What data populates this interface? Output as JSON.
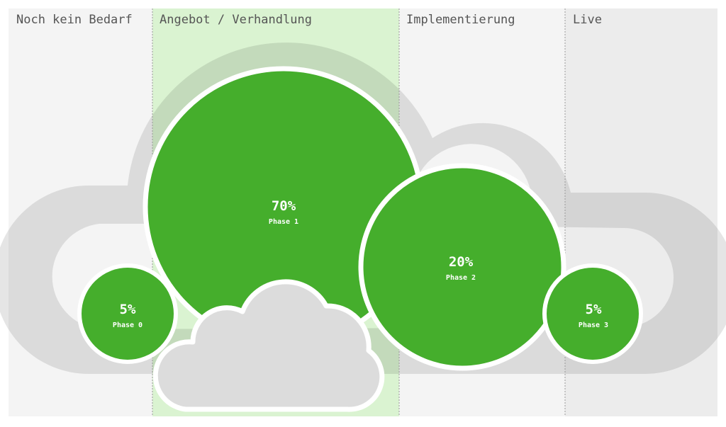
{
  "columns": [
    {
      "label": "Noch kein Bedarf",
      "fill": "#f4f4f4"
    },
    {
      "label": "Angebot / Verhandlung",
      "fill": "#daf3d1"
    },
    {
      "label": "Implementierung",
      "fill": "#f4f4f4"
    },
    {
      "label": "Live",
      "fill": "#ececec"
    }
  ],
  "phases": [
    {
      "percent": "5%",
      "label": "Phase 0",
      "share": 5
    },
    {
      "percent": "70%",
      "label": "Phase 1",
      "share": 70
    },
    {
      "percent": "20%",
      "label": "Phase 2",
      "share": 20
    },
    {
      "percent": "5%",
      "label": "Phase 3",
      "share": 5
    }
  ],
  "colors": {
    "bubble": "#45ae2c",
    "cloud": "#dcdcdc",
    "divider": "#9a9a9a",
    "label_text": "#555555"
  }
}
